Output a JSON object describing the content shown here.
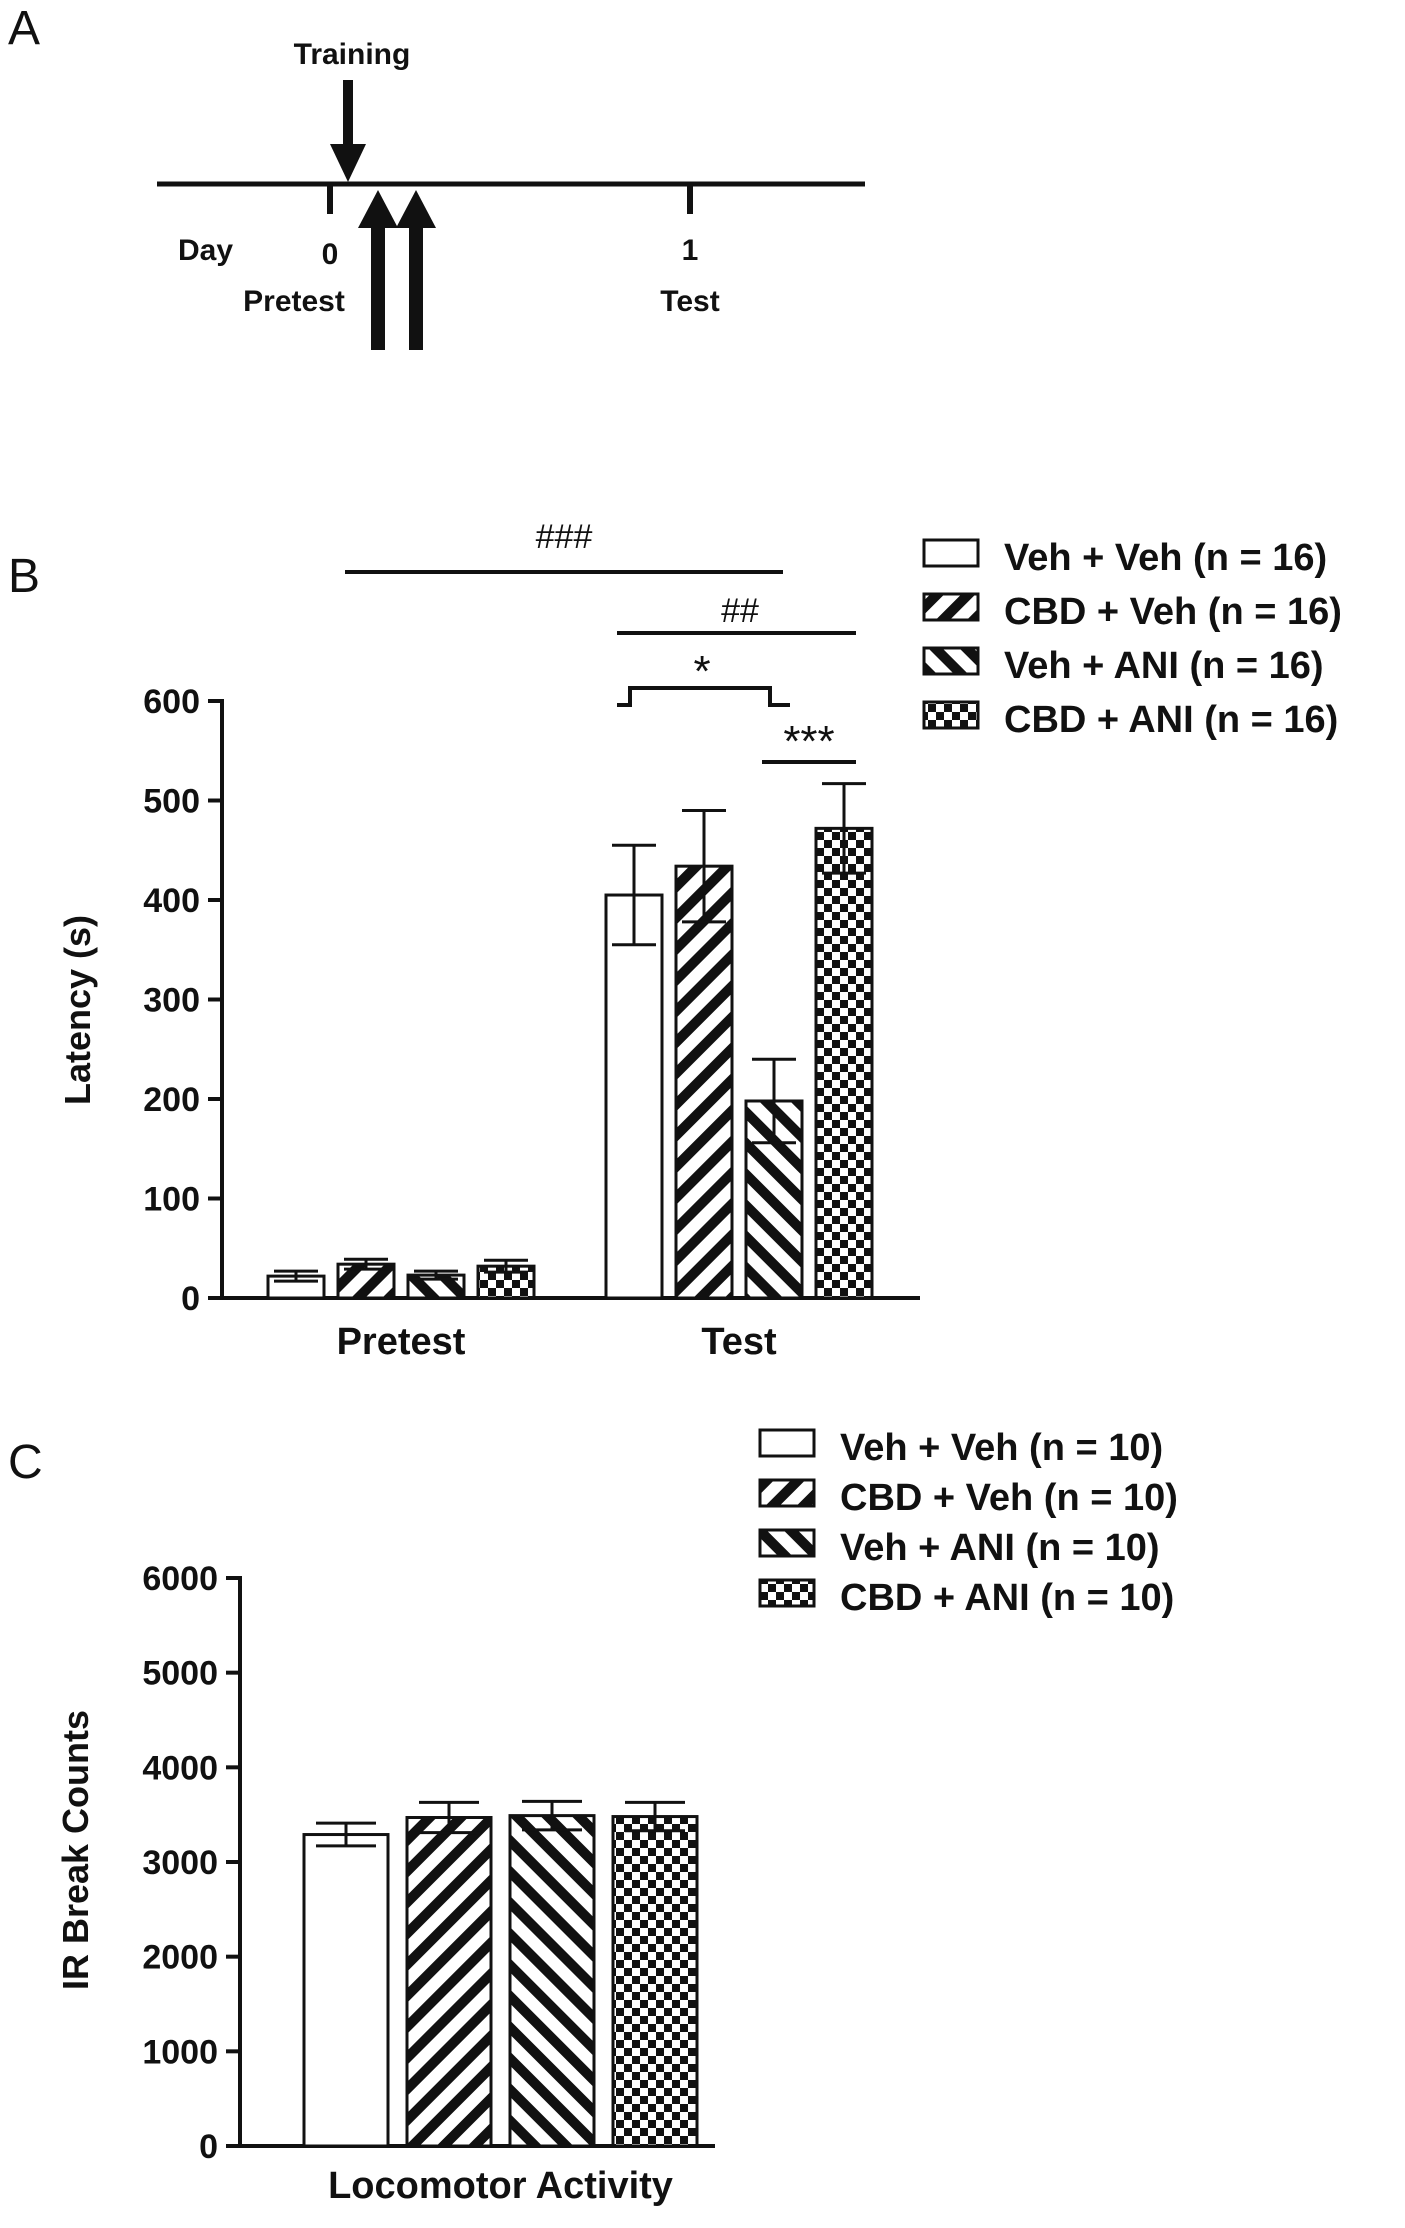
{
  "panel_a": {
    "letter": "A",
    "training_label": "Training",
    "day_label": "Day",
    "day0_label": "0",
    "day1_label": "1",
    "pretest_label": "Pretest",
    "test_label": "Test"
  },
  "chart_data": [
    {
      "panel": "B",
      "type": "bar",
      "ylabel": "Latency (s)",
      "xlabel": "",
      "ylim": [
        0,
        600
      ],
      "yticks": [
        0,
        100,
        200,
        300,
        400,
        500,
        600
      ],
      "categories": [
        "Pretest",
        "Test"
      ],
      "legend_position": "top-right",
      "series": [
        {
          "name": "Veh + Veh (n = 16)",
          "pattern": "open",
          "values": [
            22,
            405
          ],
          "errors": [
            5,
            50
          ]
        },
        {
          "name": "CBD + Veh (n = 16)",
          "pattern": "diag-back",
          "values": [
            34,
            434
          ],
          "errors": [
            5,
            56
          ]
        },
        {
          "name": "Veh + ANI (n = 16)",
          "pattern": "diag-fwd",
          "values": [
            23,
            198
          ],
          "errors": [
            4,
            42
          ]
        },
        {
          "name": "CBD + ANI (n = 16)",
          "pattern": "checker",
          "values": [
            32,
            472
          ],
          "errors": [
            6,
            45
          ]
        }
      ],
      "annotations": {
        "pretest_vs_test": "###",
        "test_bracket_top": "##",
        "test_bracket_mid": "*",
        "test_bracket_low": "***"
      }
    },
    {
      "panel": "C",
      "type": "bar",
      "ylabel": "IR Break Counts",
      "xlabel": "",
      "ylim": [
        0,
        6000
      ],
      "yticks": [
        0,
        1000,
        2000,
        3000,
        4000,
        5000,
        6000
      ],
      "categories": [
        "Locomotor Activity"
      ],
      "legend_position": "top-right",
      "series": [
        {
          "name": "Veh + Veh (n = 10)",
          "pattern": "open",
          "values": [
            3290
          ],
          "errors": [
            120
          ]
        },
        {
          "name": "CBD + Veh (n = 10)",
          "pattern": "diag-back",
          "values": [
            3470
          ],
          "errors": [
            160
          ]
        },
        {
          "name": "Veh + ANI (n = 10)",
          "pattern": "diag-fwd",
          "values": [
            3490
          ],
          "errors": [
            150
          ]
        },
        {
          "name": "CBD + ANI (n = 10)",
          "pattern": "checker",
          "values": [
            3480
          ],
          "errors": [
            150
          ]
        }
      ]
    }
  ]
}
